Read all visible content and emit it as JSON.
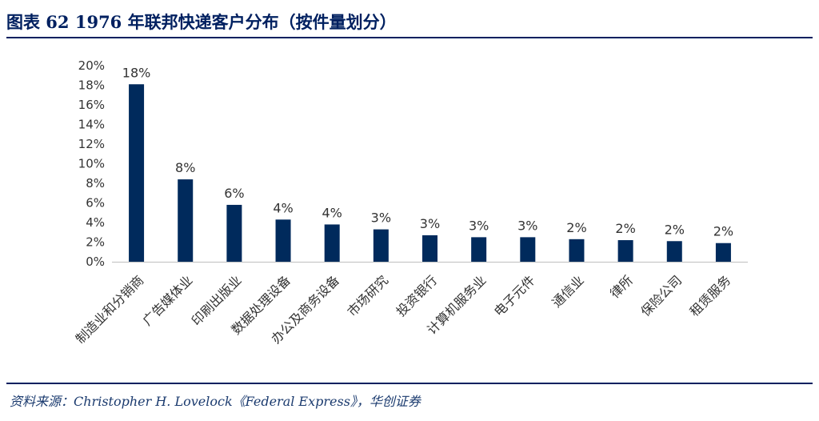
{
  "header": {
    "title": "图表 62 1976 年联邦快递客户分布（按件量划分）"
  },
  "footer": {
    "source": "资料来源：Christopher H. Lovelock《Federal Express》，华创证券"
  },
  "chart_data": {
    "type": "bar",
    "title": "图表 62 1976 年联邦快递客户分布（按件量划分）",
    "categories": [
      "制造业和分销商",
      "广告媒体业",
      "印刷出版业",
      "数据处理设备",
      "办公及商务设备",
      "市场研究",
      "投资银行",
      "计算机服务业",
      "电子元件",
      "通信业",
      "律所",
      "保险公司",
      "租赁服务"
    ],
    "values": [
      18.1,
      8.4,
      5.8,
      4.3,
      3.8,
      3.3,
      2.7,
      2.5,
      2.5,
      2.3,
      2.2,
      2.1,
      1.9
    ],
    "data_labels": [
      "18%",
      "8%",
      "6%",
      "4%",
      "4%",
      "3%",
      "3%",
      "3%",
      "3%",
      "2%",
      "2%",
      "2%",
      "2%"
    ],
    "ylim": [
      0,
      20
    ],
    "yticks": [
      0,
      2,
      4,
      6,
      8,
      10,
      12,
      14,
      16,
      18,
      20
    ],
    "ytick_labels": [
      "0%",
      "2%",
      "4%",
      "6%",
      "8%",
      "10%",
      "12%",
      "14%",
      "16%",
      "18%",
      "20%"
    ],
    "xlabel": "",
    "ylabel": "",
    "grid": false,
    "legend": "none",
    "bar_color": "#002a5c"
  }
}
